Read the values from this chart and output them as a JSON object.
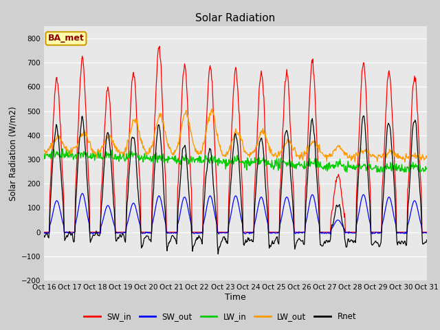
{
  "title": "Solar Radiation",
  "xlabel": "Time",
  "ylabel": "Solar Radiation (W/m2)",
  "annotation": "BA_met",
  "ylim": [
    -200,
    850
  ],
  "yticks": [
    -200,
    -100,
    0,
    100,
    200,
    300,
    400,
    500,
    600,
    700,
    800
  ],
  "n_days": 15,
  "start_day": 16,
  "colors": {
    "SW_in": "#ff0000",
    "SW_out": "#0000ff",
    "LW_in": "#00cc00",
    "LW_out": "#ff9900",
    "Rnet": "#000000"
  },
  "fig_bg_color": "#d0d0d0",
  "plot_bg_color": "#e8e8e8",
  "legend_entries": [
    "SW_in",
    "SW_out",
    "LW_in",
    "LW_out",
    "Rnet"
  ]
}
